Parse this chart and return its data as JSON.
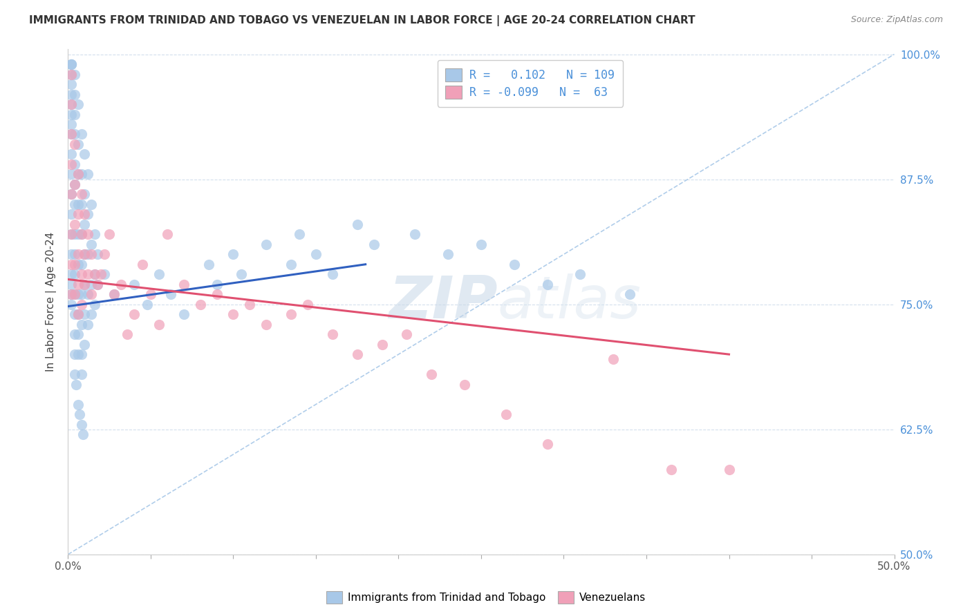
{
  "title": "IMMIGRANTS FROM TRINIDAD AND TOBAGO VS VENEZUELAN IN LABOR FORCE | AGE 20-24 CORRELATION CHART",
  "source": "Source: ZipAtlas.com",
  "ylabel": "In Labor Force | Age 20-24",
  "xmin": 0.0,
  "xmax": 0.5,
  "ymin": 0.5,
  "ymax": 1.005,
  "yticks": [
    0.5,
    0.625,
    0.75,
    0.875,
    1.0
  ],
  "ytick_labels": [
    "50.0%",
    "62.5%",
    "75.0%",
    "87.5%",
    "100.0%"
  ],
  "xticks": [
    0.0,
    0.05,
    0.1,
    0.15,
    0.2,
    0.25,
    0.3,
    0.35,
    0.4,
    0.45,
    0.5
  ],
  "xtick_labels": [
    "0.0%",
    "",
    "",
    "",
    "",
    "",
    "",
    "",
    "",
    "",
    "50.0%"
  ],
  "blue_color": "#a8c8e8",
  "pink_color": "#f0a0b8",
  "blue_line_color": "#3060c0",
  "pink_line_color": "#e05070",
  "dashed_line_color": "#a8c8e8",
  "legend_blue_R": "0.102",
  "legend_blue_N": "109",
  "legend_pink_R": "-0.099",
  "legend_pink_N": "63",
  "watermark_zip": "ZIP",
  "watermark_atlas": "atlas",
  "blue_line_x": [
    0.0,
    0.18
  ],
  "blue_line_y": [
    0.748,
    0.79
  ],
  "pink_line_x": [
    0.0,
    0.4
  ],
  "pink_line_y": [
    0.775,
    0.7
  ],
  "dash_line_x": [
    0.0,
    0.5
  ],
  "dash_line_y": [
    0.5,
    1.0
  ],
  "blue_scatter_x": [
    0.002,
    0.002,
    0.002,
    0.002,
    0.002,
    0.002,
    0.002,
    0.002,
    0.002,
    0.002,
    0.002,
    0.002,
    0.002,
    0.002,
    0.002,
    0.002,
    0.002,
    0.002,
    0.002,
    0.002,
    0.004,
    0.004,
    0.004,
    0.004,
    0.004,
    0.004,
    0.004,
    0.004,
    0.004,
    0.004,
    0.004,
    0.004,
    0.004,
    0.004,
    0.004,
    0.006,
    0.006,
    0.006,
    0.006,
    0.006,
    0.006,
    0.006,
    0.006,
    0.006,
    0.006,
    0.008,
    0.008,
    0.008,
    0.008,
    0.008,
    0.008,
    0.008,
    0.008,
    0.008,
    0.01,
    0.01,
    0.01,
    0.01,
    0.01,
    0.01,
    0.01,
    0.012,
    0.012,
    0.012,
    0.012,
    0.012,
    0.014,
    0.014,
    0.014,
    0.014,
    0.016,
    0.016,
    0.016,
    0.018,
    0.018,
    0.022,
    0.028,
    0.04,
    0.048,
    0.055,
    0.062,
    0.07,
    0.085,
    0.09,
    0.1,
    0.105,
    0.12,
    0.135,
    0.14,
    0.15,
    0.16,
    0.175,
    0.185,
    0.21,
    0.23,
    0.25,
    0.27,
    0.29,
    0.31,
    0.34,
    0.005,
    0.006,
    0.007,
    0.008,
    0.009
  ],
  "blue_scatter_y": [
    0.99,
    0.99,
    0.99,
    0.98,
    0.97,
    0.96,
    0.95,
    0.94,
    0.93,
    0.92,
    0.9,
    0.88,
    0.86,
    0.84,
    0.82,
    0.8,
    0.78,
    0.77,
    0.76,
    0.75,
    0.98,
    0.96,
    0.94,
    0.92,
    0.89,
    0.87,
    0.85,
    0.82,
    0.8,
    0.78,
    0.76,
    0.74,
    0.72,
    0.7,
    0.68,
    0.95,
    0.91,
    0.88,
    0.85,
    0.82,
    0.79,
    0.76,
    0.74,
    0.72,
    0.7,
    0.92,
    0.88,
    0.85,
    0.82,
    0.79,
    0.76,
    0.73,
    0.7,
    0.68,
    0.9,
    0.86,
    0.83,
    0.8,
    0.77,
    0.74,
    0.71,
    0.88,
    0.84,
    0.8,
    0.76,
    0.73,
    0.85,
    0.81,
    0.77,
    0.74,
    0.82,
    0.78,
    0.75,
    0.8,
    0.77,
    0.78,
    0.76,
    0.77,
    0.75,
    0.78,
    0.76,
    0.74,
    0.79,
    0.77,
    0.8,
    0.78,
    0.81,
    0.79,
    0.82,
    0.8,
    0.78,
    0.83,
    0.81,
    0.82,
    0.8,
    0.81,
    0.79,
    0.77,
    0.78,
    0.76,
    0.67,
    0.65,
    0.64,
    0.63,
    0.62
  ],
  "pink_scatter_x": [
    0.002,
    0.002,
    0.002,
    0.002,
    0.002,
    0.002,
    0.002,
    0.002,
    0.004,
    0.004,
    0.004,
    0.004,
    0.004,
    0.006,
    0.006,
    0.006,
    0.006,
    0.006,
    0.008,
    0.008,
    0.008,
    0.008,
    0.01,
    0.01,
    0.01,
    0.012,
    0.012,
    0.014,
    0.014,
    0.016,
    0.018,
    0.02,
    0.022,
    0.025,
    0.028,
    0.032,
    0.036,
    0.04,
    0.045,
    0.05,
    0.055,
    0.06,
    0.07,
    0.08,
    0.09,
    0.1,
    0.11,
    0.12,
    0.135,
    0.145,
    0.16,
    0.175,
    0.19,
    0.205,
    0.22,
    0.24,
    0.265,
    0.29,
    0.33,
    0.365,
    0.4
  ],
  "pink_scatter_y": [
    0.98,
    0.95,
    0.92,
    0.89,
    0.86,
    0.82,
    0.79,
    0.76,
    0.91,
    0.87,
    0.83,
    0.79,
    0.76,
    0.88,
    0.84,
    0.8,
    0.77,
    0.74,
    0.86,
    0.82,
    0.78,
    0.75,
    0.84,
    0.8,
    0.77,
    0.82,
    0.78,
    0.8,
    0.76,
    0.78,
    0.77,
    0.78,
    0.8,
    0.82,
    0.76,
    0.77,
    0.72,
    0.74,
    0.79,
    0.76,
    0.73,
    0.82,
    0.77,
    0.75,
    0.76,
    0.74,
    0.75,
    0.73,
    0.74,
    0.75,
    0.72,
    0.7,
    0.71,
    0.72,
    0.68,
    0.67,
    0.64,
    0.61,
    0.695,
    0.585,
    0.585
  ]
}
